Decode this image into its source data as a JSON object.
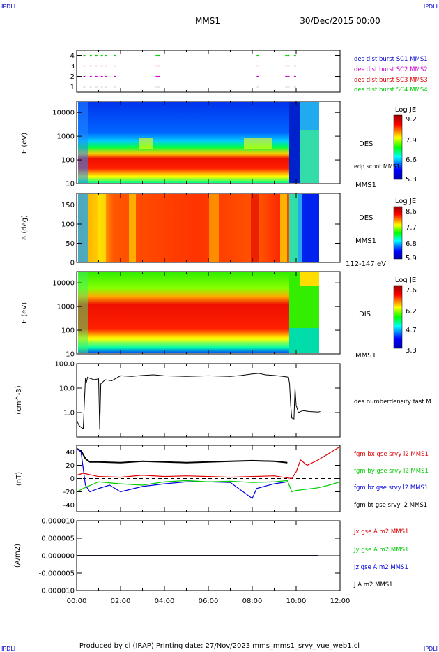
{
  "header": {
    "corner_left_top": "IPDLI",
    "corner_right_top": "IPDLI",
    "corner_left_bottom": "IPDLI",
    "corner_right_bottom": "IPDLI",
    "spacecraft": "MMS1",
    "date": "30/Dec/2015 00:00"
  },
  "footer": {
    "text": "Produced by cl (IRAP)   Printing date: 27/Nov/2023   mms_mms1_srvy_vue_web1.cl"
  },
  "colors": {
    "black": "#000000",
    "red": "#dd0000",
    "green": "#00cc00",
    "blue": "#0000dd",
    "magenta": "#cc00cc",
    "legend_blue": "#0000cc"
  },
  "chart_data": [
    {
      "type": "scatter",
      "panel": "burst",
      "yticks": [
        "1",
        "2",
        "3",
        "4"
      ],
      "xlim": [
        0,
        12
      ],
      "series": [
        {
          "name": "des dist burst SC1 MMS1",
          "y": 1,
          "color": "#000000",
          "x": [
            0.3,
            0.6,
            0.85,
            1.1,
            1.3,
            1.7,
            3.6,
            3.7,
            8.2,
            9.5,
            9.6,
            9.9
          ]
        },
        {
          "name": "des dist burst SC2 MMS2",
          "y": 2,
          "color": "#cc00cc",
          "x": [
            0.3,
            0.6,
            0.85,
            1.1,
            1.3,
            1.7,
            3.6,
            3.7,
            8.2,
            9.5,
            9.6,
            9.9
          ]
        },
        {
          "name": "des dist burst SC3 MMS3",
          "y": 3,
          "color": "#dd0000",
          "x": [
            0.3,
            0.6,
            0.85,
            1.1,
            1.3,
            1.7,
            3.6,
            3.7,
            8.2,
            9.5,
            9.6,
            9.9
          ]
        },
        {
          "name": "des dist burst SC4 MMS4",
          "y": 4,
          "color": "#00cc00",
          "x": [
            0.3,
            0.6,
            0.85,
            1.1,
            1.3,
            1.7,
            3.6,
            3.7,
            8.2,
            9.5,
            9.6,
            9.9
          ]
        }
      ]
    },
    {
      "type": "heatmap",
      "panel": "des_energy",
      "ylabel": "E (eV)",
      "yticks": [
        "10",
        "100",
        "1000",
        "10000"
      ],
      "log_y": true,
      "ylim": [
        10,
        30000
      ],
      "label": "DES",
      "label2": "MMS1",
      "overlay_label": "edp scpot MMS1",
      "colorbar": {
        "title": "Log JE",
        "ticks": [
          "9.2",
          "7.9",
          "6.6",
          "5.3"
        ],
        "range": [
          5.3,
          9.2
        ]
      },
      "time_range": [
        0.0,
        11.1
      ],
      "energy_band_center_ev": 70
    },
    {
      "type": "heatmap",
      "panel": "des_pitch",
      "ylabel": "a (deg)",
      "yticks": [
        "0",
        "50",
        "100",
        "150"
      ],
      "ylim": [
        0,
        180
      ],
      "label": "DES",
      "label2": "MMS1",
      "label3": "112-147 eV",
      "colorbar": {
        "title": "Log JE",
        "ticks": [
          "8.6",
          "7.7",
          "6.8",
          "5.9"
        ],
        "range": [
          5.9,
          8.6
        ]
      },
      "time_range": [
        0.0,
        11.1
      ]
    },
    {
      "type": "heatmap",
      "panel": "dis_energy",
      "ylabel": "E (eV)",
      "yticks": [
        "10",
        "100",
        "1000",
        "10000"
      ],
      "log_y": true,
      "ylim": [
        10,
        30000
      ],
      "label": "DIS",
      "label2": "MMS1",
      "colorbar": {
        "title": "Log JE",
        "ticks": [
          "7.6",
          "6.2",
          "4.7",
          "3.3"
        ],
        "range": [
          3.3,
          7.6
        ]
      },
      "time_range": [
        0.0,
        11.1
      ]
    },
    {
      "type": "line",
      "panel": "density",
      "ylabel": "(cm^-3)",
      "yticks": [
        "1.0",
        "10.0",
        "100.0"
      ],
      "log_y": true,
      "ylim": [
        0.1,
        100
      ],
      "series": [
        {
          "name": "des numberdensity fast M",
          "x": [
            0.0,
            0.1,
            0.2,
            0.3,
            0.4,
            0.45,
            0.5,
            0.6,
            0.8,
            1.0,
            1.05,
            1.1,
            1.3,
            1.6,
            2.0,
            2.5,
            3.0,
            3.5,
            4.0,
            5.0,
            6.0,
            7.0,
            7.5,
            8.0,
            8.3,
            8.6,
            9.0,
            9.4,
            9.65,
            9.7,
            9.75,
            9.8,
            9.9,
            9.95,
            10.0,
            10.1,
            10.3,
            10.6,
            11.0,
            11.1
          ],
          "y": [
            0.5,
            0.3,
            0.25,
            0.22,
            25,
            18,
            28,
            25,
            22,
            24,
            0.2,
            15,
            22,
            20,
            32,
            30,
            33,
            35,
            32,
            30,
            32,
            30,
            33,
            38,
            40,
            35,
            33,
            30,
            28,
            15,
            2.0,
            0.6,
            0.55,
            10,
            2.0,
            1.0,
            1.2,
            1.1,
            1.05,
            1.1
          ]
        }
      ]
    },
    {
      "type": "line",
      "panel": "fgm",
      "ylabel": "(nT)",
      "yticks": [
        "-40",
        "-20",
        "0",
        "20",
        "40"
      ],
      "ylim": [
        -50,
        50
      ],
      "series": [
        {
          "name": "fgm bx gse srvy l2 MMS1",
          "color": "#dd0000",
          "x": [
            0.0,
            0.3,
            1.0,
            2.0,
            3.0,
            4.0,
            5.0,
            6.0,
            7.0,
            8.0,
            9.0,
            9.6,
            9.8,
            10.0,
            10.2,
            10.5,
            11.0,
            11.5,
            12.0
          ],
          "y": [
            5,
            8,
            3,
            2,
            5,
            3,
            4,
            3,
            2,
            3,
            4,
            1,
            0,
            10,
            28,
            20,
            28,
            38,
            48
          ]
        },
        {
          "name": "fgm by gse srvy l2 MMS1",
          "color": "#00cc00",
          "x": [
            0.0,
            0.3,
            1.0,
            2.0,
            3.0,
            4.0,
            5.0,
            6.0,
            7.0,
            8.0,
            9.0,
            9.6,
            9.8,
            10.0,
            10.5,
            11.0,
            11.5,
            12.0
          ],
          "y": [
            -20,
            -15,
            -5,
            -8,
            -10,
            -5,
            -3,
            -5,
            -4,
            -6,
            -5,
            -3,
            -20,
            -18,
            -16,
            -14,
            -10,
            -5
          ]
        },
        {
          "name": "fgm bz gse srvy l2 MMS1",
          "color": "#0000dd",
          "x": [
            0.0,
            0.2,
            0.4,
            0.6,
            1.0,
            1.5,
            2.0,
            3.0,
            4.0,
            5.0,
            6.0,
            7.0,
            8.0,
            8.2,
            9.0,
            9.6
          ],
          "y": [
            45,
            40,
            -10,
            -20,
            -15,
            -10,
            -20,
            -12,
            -8,
            -5,
            -5,
            -6,
            -30,
            -15,
            -8,
            -5
          ]
        },
        {
          "name": "fgm bt gse srvy l2 MMS1",
          "color": "#000000",
          "x": [
            0.0,
            0.2,
            0.4,
            0.6,
            1.0,
            2.0,
            3.0,
            4.0,
            5.0,
            6.0,
            7.0,
            8.0,
            9.0,
            9.6
          ],
          "y": [
            45,
            42,
            30,
            25,
            25,
            24,
            26,
            25,
            24,
            25,
            26,
            27,
            26,
            24
          ]
        }
      ]
    },
    {
      "type": "line",
      "panel": "current",
      "ylabel": "(A/m2)",
      "yticks": [
        "-0.000010",
        "-0.000005",
        "0.000000",
        "0.000005",
        "0.000010"
      ],
      "ylim": [
        -1e-05,
        1e-05
      ],
      "series": [
        {
          "name": "Jx gse A m2 MMS1",
          "color": "#dd0000",
          "x": [
            0.0,
            11.0
          ],
          "y": [
            0,
            0
          ]
        },
        {
          "name": "Jy gse A m2 MMS1",
          "color": "#00cc00",
          "x": [
            0.0,
            11.0
          ],
          "y": [
            0,
            0
          ]
        },
        {
          "name": "Jz gse A m2 MMS1",
          "color": "#0000dd",
          "x": [
            0.0,
            11.0
          ],
          "y": [
            0,
            0
          ]
        },
        {
          "name": "J A m2 MMS1",
          "color": "#000000",
          "x": [
            0.0,
            11.0
          ],
          "y": [
            0,
            0
          ]
        }
      ]
    }
  ],
  "xaxis": {
    "ticks": [
      "00:00",
      "02:00",
      "04:00",
      "06:00",
      "08:00",
      "10:00",
      "12:00"
    ],
    "range": [
      0,
      12
    ]
  }
}
